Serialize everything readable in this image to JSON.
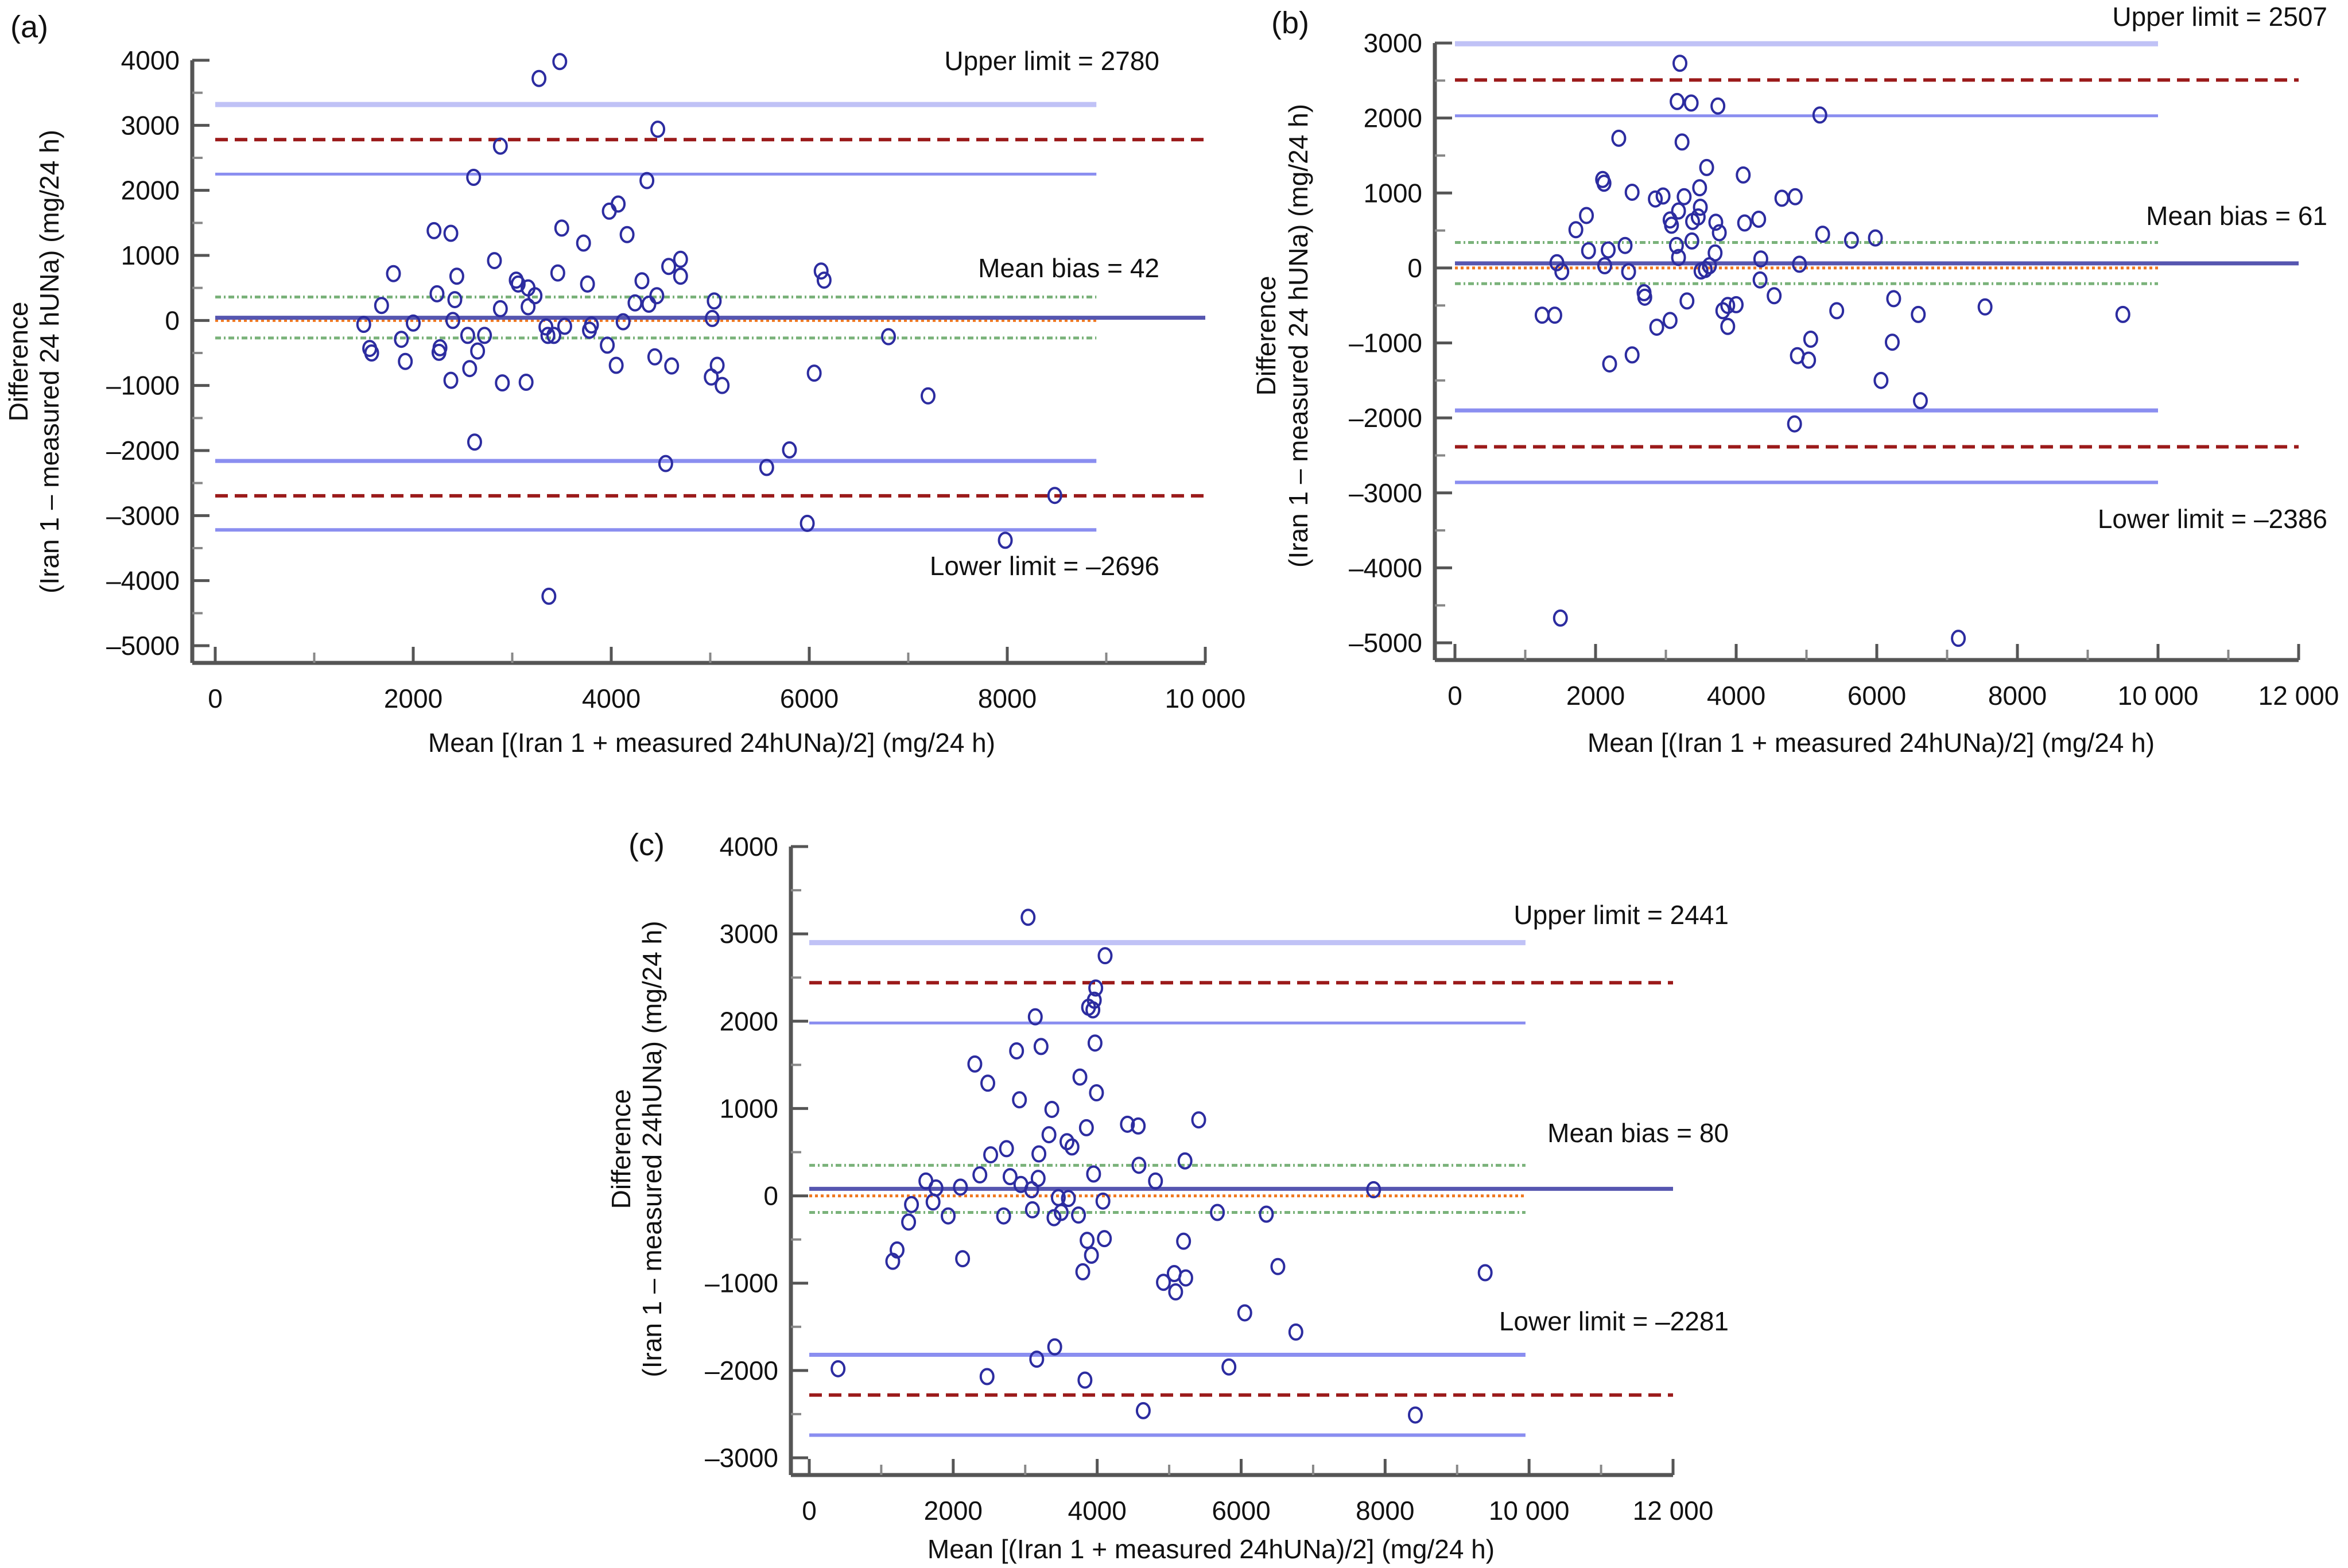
{
  "chart_data": [
    {
      "panel_label": "(a)",
      "type": "scatter",
      "subtype": "bland-altman",
      "xlabel": "Mean [(Iran 1 + measured 24hUNa)/2] (mg/24 h)",
      "ylabel_line1": "Difference",
      "ylabel_line2": "(Iran 1 – measured 24 hUNa) (mg/24 h)",
      "xlim": [
        0,
        10000
      ],
      "ylim": [
        -5000,
        4000
      ],
      "xticks": [
        0,
        2000,
        4000,
        6000,
        8000,
        10000
      ],
      "xtick_labels": [
        "0",
        "2000",
        "4000",
        "6000",
        "8000",
        "10 000"
      ],
      "yticks": [
        4000,
        3000,
        2000,
        1000,
        0,
        -1000,
        -2000,
        -3000,
        -4000,
        -5000
      ],
      "ytick_labels": [
        "4000",
        "3000",
        "2000",
        "1000",
        "0",
        "–1000",
        "–2000",
        "–3000",
        "–4000",
        "–5000"
      ],
      "annotations": {
        "upper": "Upper limit = 2780",
        "mean": "Mean bias = 42",
        "lower": "Lower limit = –2696"
      },
      "reference_lines": {
        "mean_bias": 42,
        "upper_limit": 2780,
        "lower_limit": -2696,
        "upper_limit_ci": [
          2250,
          3320
        ],
        "lower_limit_ci": [
          -3220,
          -2160
        ],
        "mean_bias_ci": [
          -270,
          360
        ],
        "zero": 0,
        "ci_line_xmax": 8900
      },
      "points": [
        [
          1500,
          -60
        ],
        [
          1560,
          -430
        ],
        [
          1580,
          -500
        ],
        [
          1680,
          230
        ],
        [
          1800,
          720
        ],
        [
          1880,
          -290
        ],
        [
          1920,
          -630
        ],
        [
          2000,
          -40
        ],
        [
          2210,
          1380
        ],
        [
          2240,
          410
        ],
        [
          2260,
          -490
        ],
        [
          2270,
          -420
        ],
        [
          2380,
          -920
        ],
        [
          2380,
          1340
        ],
        [
          2400,
          0
        ],
        [
          2420,
          320
        ],
        [
          2440,
          680
        ],
        [
          2550,
          -230
        ],
        [
          2570,
          -740
        ],
        [
          2610,
          2200
        ],
        [
          2620,
          -1870
        ],
        [
          2650,
          -470
        ],
        [
          2720,
          -230
        ],
        [
          2820,
          920
        ],
        [
          2880,
          180
        ],
        [
          2880,
          2680
        ],
        [
          2900,
          -960
        ],
        [
          3040,
          620
        ],
        [
          3060,
          560
        ],
        [
          3140,
          -950
        ],
        [
          3160,
          210
        ],
        [
          3160,
          500
        ],
        [
          3230,
          380
        ],
        [
          3270,
          3720
        ],
        [
          3340,
          -100
        ],
        [
          3360,
          -230
        ],
        [
          3420,
          -230
        ],
        [
          3460,
          730
        ],
        [
          3480,
          3980
        ],
        [
          3500,
          1420
        ],
        [
          3530,
          -90
        ],
        [
          3720,
          1190
        ],
        [
          3760,
          560
        ],
        [
          3780,
          -150
        ],
        [
          3800,
          -70
        ],
        [
          3960,
          -380
        ],
        [
          3980,
          1680
        ],
        [
          4050,
          -690
        ],
        [
          4070,
          1790
        ],
        [
          4120,
          -20
        ],
        [
          4160,
          1320
        ],
        [
          4240,
          270
        ],
        [
          4310,
          610
        ],
        [
          4360,
          2150
        ],
        [
          4380,
          250
        ],
        [
          4440,
          -560
        ],
        [
          4460,
          380
        ],
        [
          4470,
          2940
        ],
        [
          4580,
          830
        ],
        [
          4610,
          -700
        ],
        [
          4700,
          940
        ],
        [
          4700,
          680
        ],
        [
          5010,
          -870
        ],
        [
          5020,
          30
        ],
        [
          5040,
          300
        ],
        [
          5070,
          -690
        ],
        [
          5120,
          -1000
        ],
        [
          5570,
          -2260
        ],
        [
          5800,
          -1990
        ],
        [
          5980,
          -3120
        ],
        [
          6050,
          -810
        ],
        [
          6120,
          760
        ],
        [
          6150,
          620
        ],
        [
          6800,
          -250
        ],
        [
          7200,
          -1160
        ],
        [
          7980,
          -3380
        ],
        [
          8480,
          -2690
        ],
        [
          4550,
          -2200
        ],
        [
          3370,
          -4240
        ]
      ]
    },
    {
      "panel_label": "(b)",
      "type": "scatter",
      "subtype": "bland-altman",
      "xlabel": "Mean [(Iran 1 + measured 24hUNa)/2] (mg/24 h)",
      "ylabel_line1": "Difference",
      "ylabel_line2": "(Iran 1 – measured 24 hUNa) (mg/24 h)",
      "xlim": [
        0,
        12000
      ],
      "ylim": [
        -5000,
        3000
      ],
      "xticks": [
        0,
        2000,
        4000,
        6000,
        8000,
        10000,
        12000
      ],
      "xtick_labels": [
        "0",
        "2000",
        "4000",
        "6000",
        "8000",
        "10 000",
        "12 000"
      ],
      "yticks": [
        3000,
        2000,
        1000,
        0,
        -1000,
        -2000,
        -3000,
        -4000,
        -5000
      ],
      "ytick_labels": [
        "3000",
        "2000",
        "1000",
        "0",
        "–1000",
        "–2000",
        "–3000",
        "–4000",
        "–5000"
      ],
      "annotations": {
        "upper": "Upper limit = 2507",
        "mean": "Mean bias = 61",
        "lower": "Lower limit = –2386"
      },
      "reference_lines": {
        "mean_bias": 61,
        "upper_limit": 2507,
        "lower_limit": -2386,
        "upper_limit_ci": [
          2030,
          2990
        ],
        "lower_limit_ci": [
          -2860,
          -1900
        ],
        "mean_bias_ci": [
          -210,
          340
        ],
        "zero": 0,
        "ci_line_xmax": 10000
      },
      "points": [
        [
          1240,
          -630
        ],
        [
          1420,
          -630
        ],
        [
          1450,
          70
        ],
        [
          1520,
          -50
        ],
        [
          1720,
          510
        ],
        [
          1870,
          700
        ],
        [
          1900,
          230
        ],
        [
          2100,
          1180
        ],
        [
          2120,
          1130
        ],
        [
          2130,
          30
        ],
        [
          2180,
          240
        ],
        [
          2200,
          -1280
        ],
        [
          2330,
          1730
        ],
        [
          2420,
          300
        ],
        [
          2470,
          -50
        ],
        [
          2520,
          1010
        ],
        [
          2520,
          -1160
        ],
        [
          2690,
          -330
        ],
        [
          2700,
          -390
        ],
        [
          2850,
          920
        ],
        [
          2870,
          -790
        ],
        [
          2960,
          960
        ],
        [
          3060,
          -700
        ],
        [
          3060,
          640
        ],
        [
          3080,
          570
        ],
        [
          3150,
          300
        ],
        [
          3160,
          2220
        ],
        [
          3180,
          140
        ],
        [
          3180,
          760
        ],
        [
          3200,
          2730
        ],
        [
          3230,
          1680
        ],
        [
          3260,
          950
        ],
        [
          3300,
          -440
        ],
        [
          3360,
          2200
        ],
        [
          3370,
          360
        ],
        [
          3380,
          620
        ],
        [
          3460,
          680
        ],
        [
          3480,
          1070
        ],
        [
          3490,
          810
        ],
        [
          3500,
          -40
        ],
        [
          3560,
          -20
        ],
        [
          3580,
          1340
        ],
        [
          3620,
          30
        ],
        [
          3700,
          200
        ],
        [
          3710,
          610
        ],
        [
          3740,
          2160
        ],
        [
          3760,
          470
        ],
        [
          3810,
          -570
        ],
        [
          3880,
          -500
        ],
        [
          3880,
          -780
        ],
        [
          4000,
          -490
        ],
        [
          4100,
          1240
        ],
        [
          4120,
          600
        ],
        [
          4320,
          650
        ],
        [
          4340,
          -160
        ],
        [
          4350,
          120
        ],
        [
          4540,
          -370
        ],
        [
          4650,
          930
        ],
        [
          4840,
          950
        ],
        [
          4830,
          -2080
        ],
        [
          4870,
          -1170
        ],
        [
          4900,
          50
        ],
        [
          5030,
          -1230
        ],
        [
          5060,
          -950
        ],
        [
          5190,
          2040
        ],
        [
          5230,
          450
        ],
        [
          5430,
          -570
        ],
        [
          5640,
          370
        ],
        [
          5980,
          400
        ],
        [
          6060,
          -1500
        ],
        [
          6220,
          -990
        ],
        [
          6240,
          -410
        ],
        [
          6590,
          -620
        ],
        [
          6620,
          -1770
        ],
        [
          7540,
          -520
        ],
        [
          9500,
          -620
        ],
        [
          1500,
          -4670
        ],
        [
          7160,
          -4940
        ]
      ]
    },
    {
      "panel_label": "(c)",
      "type": "scatter",
      "subtype": "bland-altman",
      "xlabel": "Mean [(Iran 1 + measured 24hUNa)/2] (mg/24 h)",
      "ylabel_line1": "Difference",
      "ylabel_line2": "(Iran 1 – measured 24hUNa) (mg/24 h)",
      "xlim": [
        0,
        12000
      ],
      "ylim": [
        -3000,
        4000
      ],
      "xticks": [
        0,
        2000,
        4000,
        6000,
        8000,
        10000,
        12000
      ],
      "xtick_labels": [
        "0",
        "2000",
        "4000",
        "6000",
        "8000",
        "10 000",
        "12 000"
      ],
      "yticks": [
        4000,
        3000,
        2000,
        1000,
        0,
        -1000,
        -2000,
        -3000
      ],
      "ytick_labels": [
        "4000",
        "3000",
        "2000",
        "1000",
        "0",
        "–1000",
        "–2000",
        "–3000"
      ],
      "annotations": {
        "upper": "Upper limit = 2441",
        "mean": "Mean bias = 80",
        "lower": "Lower limit = –2281"
      },
      "reference_lines": {
        "mean_bias": 80,
        "upper_limit": 2441,
        "lower_limit": -2281,
        "upper_limit_ci": [
          1980,
          2900
        ],
        "lower_limit_ci": [
          -2740,
          -1820
        ],
        "mean_bias_ci": [
          -190,
          350
        ],
        "zero": 0,
        "ci_line_xmax": 9950
      },
      "points": [
        [
          400,
          -1980
        ],
        [
          1160,
          -750
        ],
        [
          1220,
          -620
        ],
        [
          1380,
          -300
        ],
        [
          1420,
          -100
        ],
        [
          1620,
          170
        ],
        [
          1720,
          -70
        ],
        [
          1760,
          90
        ],
        [
          1930,
          -230
        ],
        [
          2100,
          100
        ],
        [
          2130,
          -720
        ],
        [
          2300,
          1510
        ],
        [
          2370,
          240
        ],
        [
          2480,
          1290
        ],
        [
          2470,
          -2070
        ],
        [
          2520,
          470
        ],
        [
          2700,
          -230
        ],
        [
          2740,
          540
        ],
        [
          2790,
          220
        ],
        [
          2880,
          1660
        ],
        [
          2920,
          1100
        ],
        [
          2940,
          130
        ],
        [
          3040,
          3190
        ],
        [
          3090,
          70
        ],
        [
          3100,
          -160
        ],
        [
          3140,
          2050
        ],
        [
          3160,
          -1870
        ],
        [
          3180,
          200
        ],
        [
          3190,
          480
        ],
        [
          3220,
          1710
        ],
        [
          3330,
          700
        ],
        [
          3370,
          990
        ],
        [
          3400,
          -250
        ],
        [
          3410,
          -1730
        ],
        [
          3460,
          -20
        ],
        [
          3500,
          -190
        ],
        [
          3580,
          620
        ],
        [
          3600,
          -30
        ],
        [
          3650,
          560
        ],
        [
          3740,
          -220
        ],
        [
          3760,
          1360
        ],
        [
          3800,
          -870
        ],
        [
          3830,
          -2110
        ],
        [
          3850,
          780
        ],
        [
          3860,
          -510
        ],
        [
          3880,
          2160
        ],
        [
          3920,
          -680
        ],
        [
          3940,
          2130
        ],
        [
          3950,
          250
        ],
        [
          3960,
          2240
        ],
        [
          3970,
          1750
        ],
        [
          3980,
          2380
        ],
        [
          3990,
          1180
        ],
        [
          4080,
          -60
        ],
        [
          4110,
          2750
        ],
        [
          4100,
          -490
        ],
        [
          4420,
          820
        ],
        [
          4570,
          800
        ],
        [
          4580,
          350
        ],
        [
          4640,
          -2460
        ],
        [
          4810,
          170
        ],
        [
          4920,
          -990
        ],
        [
          5070,
          -890
        ],
        [
          5090,
          -1100
        ],
        [
          5200,
          -520
        ],
        [
          5220,
          400
        ],
        [
          5230,
          -940
        ],
        [
          5410,
          870
        ],
        [
          5670,
          -190
        ],
        [
          5830,
          -1960
        ],
        [
          6050,
          -1340
        ],
        [
          6350,
          -210
        ],
        [
          6510,
          -810
        ],
        [
          6760,
          -1560
        ],
        [
          7840,
          70
        ],
        [
          8420,
          -2510
        ],
        [
          9390,
          -880
        ]
      ]
    }
  ],
  "legend_colors": {
    "points": "#2c2ca0",
    "mean_bias_line": "#5656b0",
    "limit_dashed": "#9b1a1a",
    "ci_lines": "#8a8ef0",
    "ci_light": "#c0c2f6",
    "mean_ci_dotdash": "#5aa05a",
    "zero_dotted": "#f07820"
  }
}
